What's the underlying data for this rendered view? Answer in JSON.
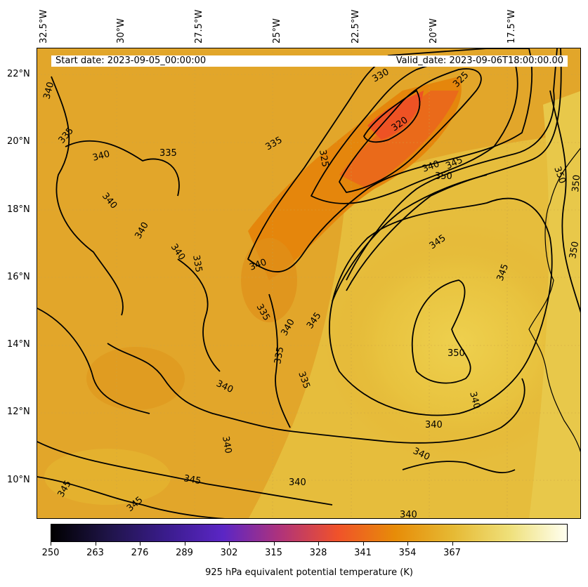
{
  "banner": {
    "start_label": "Start date: 2023-09-05_00:00:00",
    "valid_label": "Valid_date: 2023-09-06T18:00:00.00"
  },
  "longitudes": [
    "32.5°W",
    "30°W",
    "27.5°W",
    "25°W",
    "22.5°W",
    "20°W",
    "17.5°W"
  ],
  "latitudes": [
    "22°N",
    "20°N",
    "18°N",
    "16°N",
    "14°N",
    "12°N",
    "10°N"
  ],
  "contour_labels": [
    "320",
    "325",
    "330",
    "335",
    "340",
    "345",
    "350"
  ],
  "colorbar": {
    "label": "925 hPa equivalent potential temperature (K)",
    "ticks": [
      "250",
      "263",
      "276",
      "289",
      "302",
      "315",
      "328",
      "341",
      "354",
      "367"
    ],
    "colors": [
      "#000000",
      "#1f1448",
      "#3a1c8c",
      "#5b26c5",
      "#b0337a",
      "#f0522a",
      "#e78c08",
      "#e6b933",
      "#efe07a",
      "#fffff0"
    ]
  }
}
